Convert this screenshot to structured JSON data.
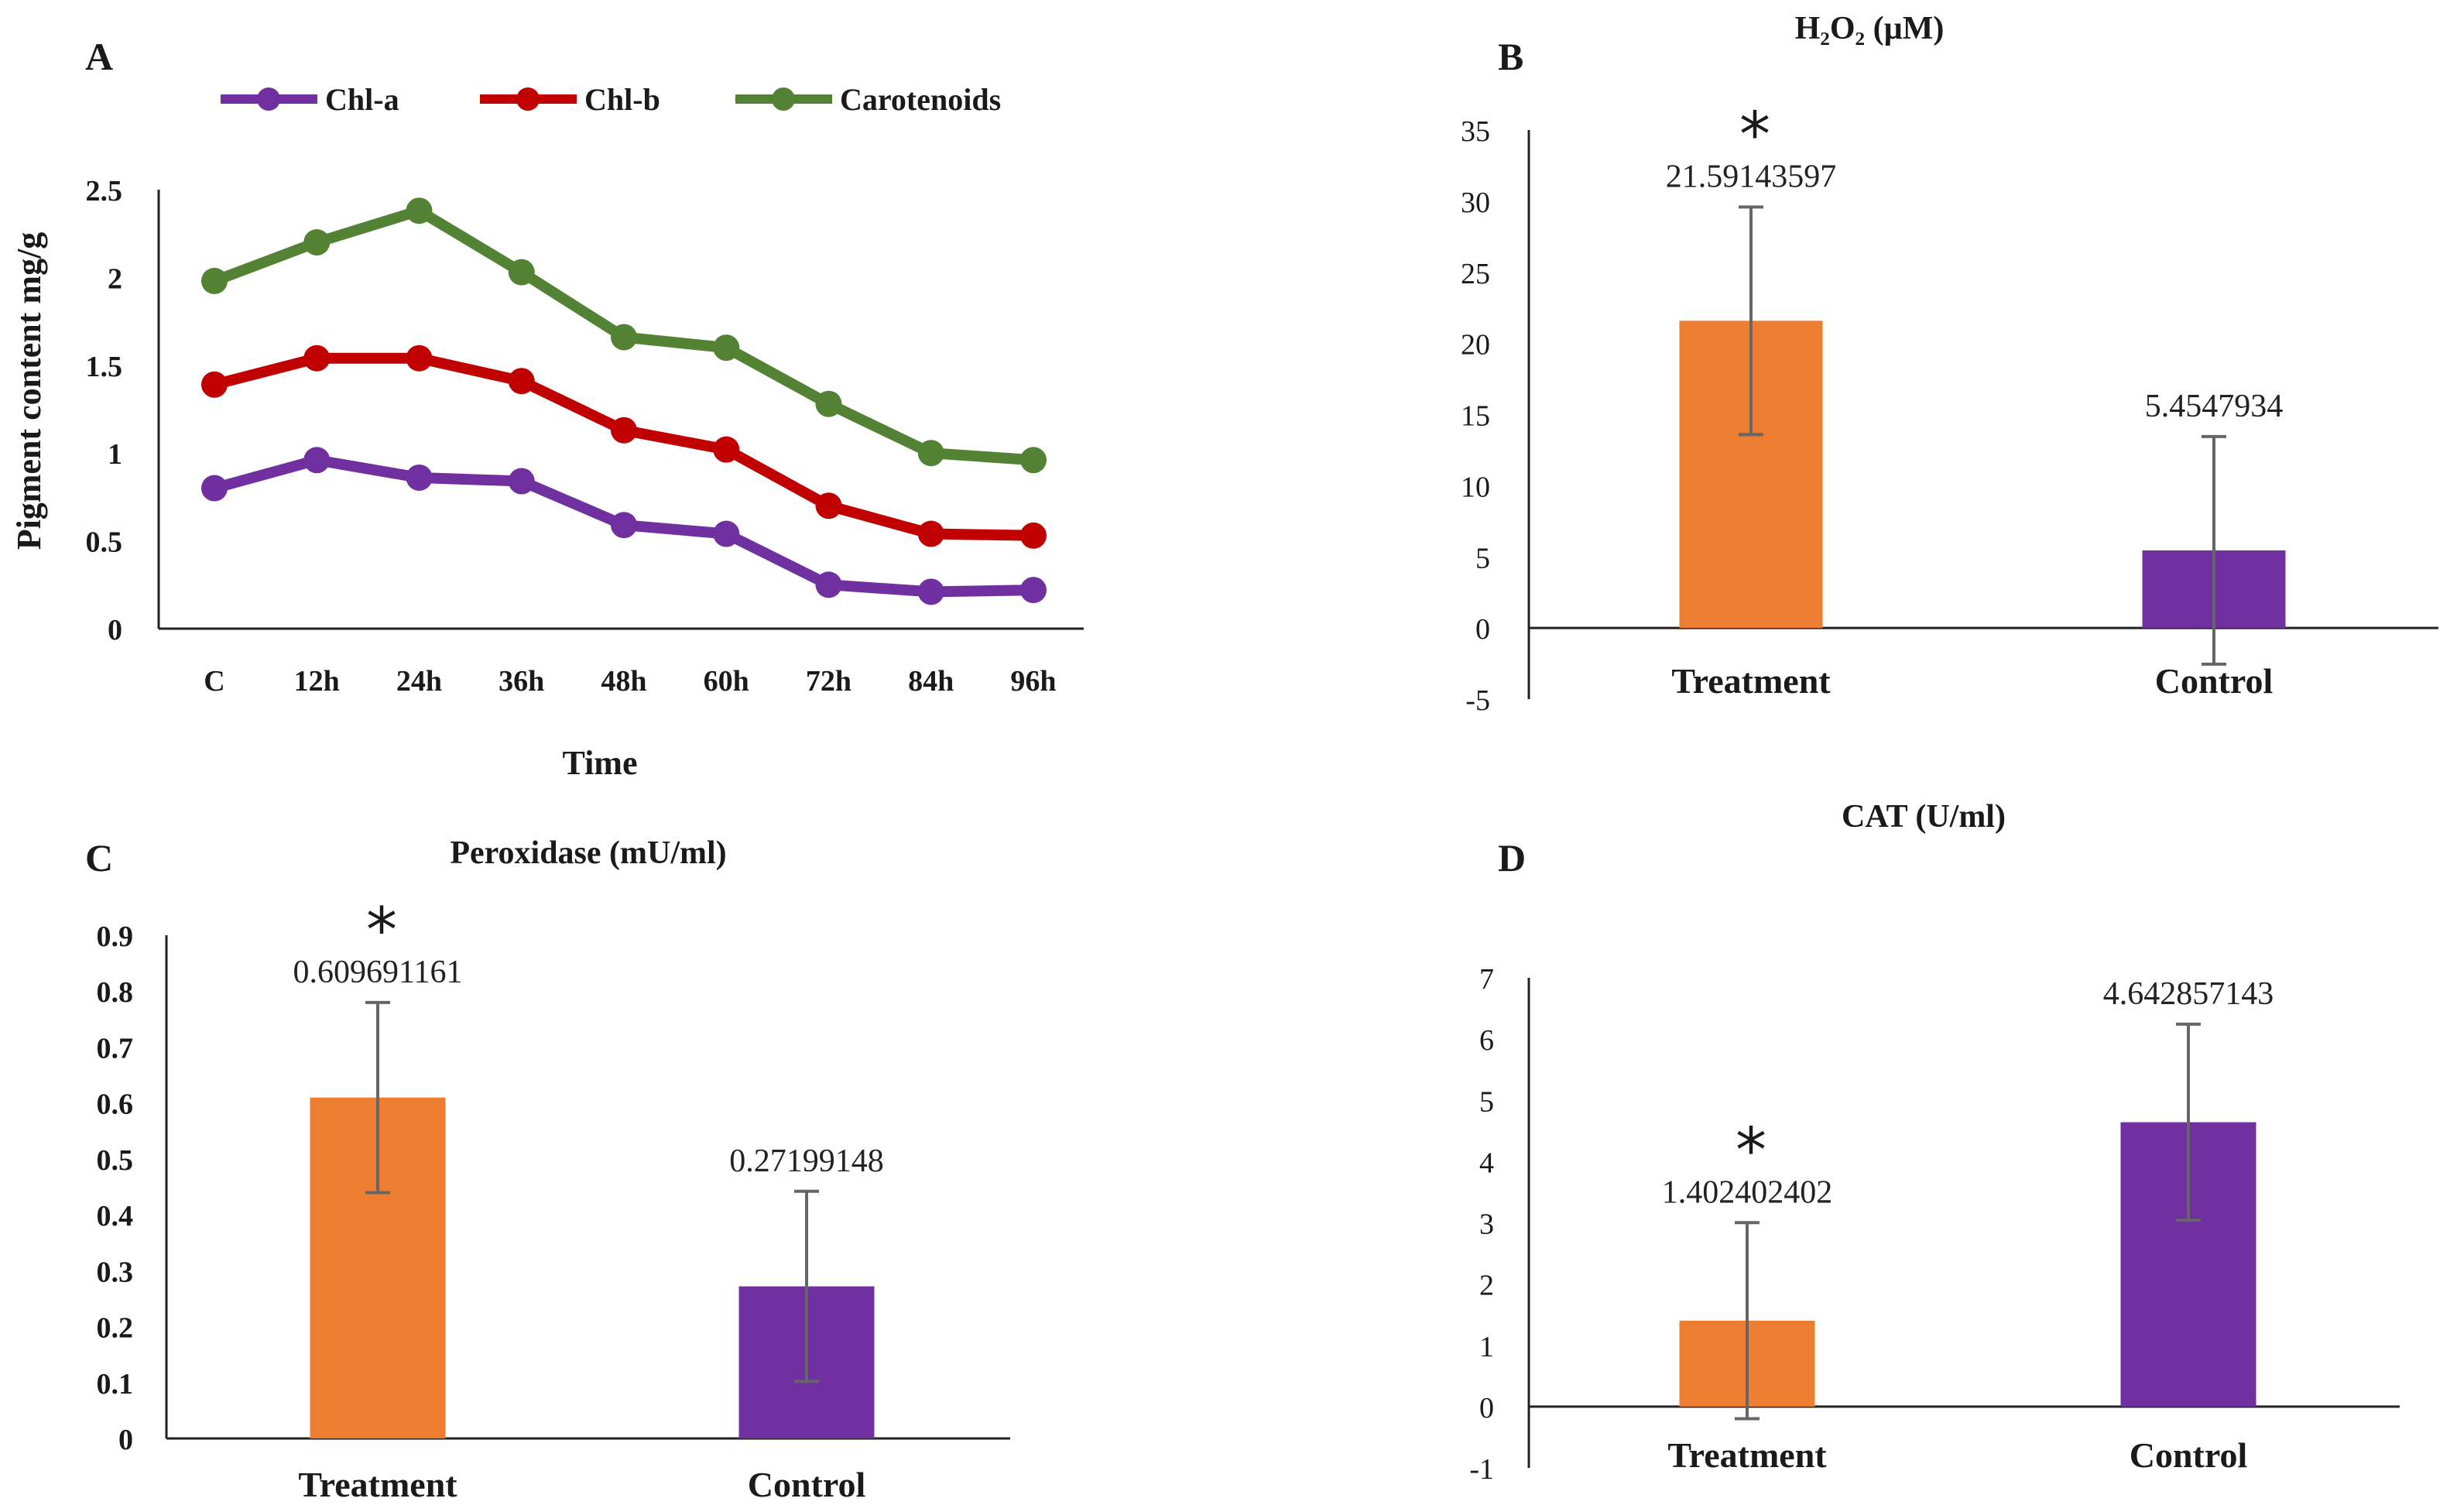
{
  "chart_data": [
    {
      "panel": "A",
      "type": "line",
      "title": "",
      "xlabel": "Time",
      "ylabel": "Pigment content mg/g",
      "categories": [
        "C",
        "12h",
        "24h",
        "36h",
        "48h",
        "60h",
        "72h",
        "84h",
        "96h"
      ],
      "yticks": [
        "0",
        "0.5",
        "1",
        "1.5",
        "2",
        "2.5"
      ],
      "ylim": [
        0,
        2.5
      ],
      "legend_position": "top",
      "series": [
        {
          "name": "Chl-a",
          "color": "#7030a0",
          "values": [
            0.8,
            0.96,
            0.86,
            0.84,
            0.59,
            0.54,
            0.25,
            0.21,
            0.22
          ]
        },
        {
          "name": "Chl-b",
          "color": "#c00000",
          "values": [
            1.39,
            1.54,
            1.54,
            1.41,
            1.13,
            1.02,
            0.7,
            0.54,
            0.53
          ]
        },
        {
          "name": "Carotenoids",
          "color": "#548235",
          "values": [
            1.98,
            2.2,
            2.38,
            2.03,
            1.66,
            1.6,
            1.28,
            1.0,
            0.96
          ]
        }
      ]
    },
    {
      "panel": "B",
      "type": "bar",
      "title": "H₂O₂ (µM)",
      "categories": [
        "Treatment",
        "Control"
      ],
      "values": [
        21.59143597,
        5.4547934
      ],
      "value_labels": [
        "21.59143597",
        "5.4547934"
      ],
      "error": [
        8,
        8
      ],
      "colors": [
        "#ed7d31",
        "#7030a0"
      ],
      "significance": [
        "*",
        ""
      ],
      "yticks": [
        "-5",
        "0",
        "5",
        "10",
        "15",
        "20",
        "25",
        "30",
        "35"
      ],
      "ylim": [
        -5,
        35
      ]
    },
    {
      "panel": "C",
      "type": "bar",
      "title": "Peroxidase (mU/ml)",
      "categories": [
        "Treatment",
        "Control"
      ],
      "values": [
        0.609691161,
        0.27199148
      ],
      "value_labels": [
        "0.609691161",
        "0.27199148"
      ],
      "error": [
        0.17,
        0.17
      ],
      "colors": [
        "#ed7d31",
        "#7030a0"
      ],
      "significance": [
        "*",
        ""
      ],
      "yticks": [
        "0",
        "0.1",
        "0.2",
        "0.3",
        "0.4",
        "0.5",
        "0.6",
        "0.7",
        "0.8",
        "0.9"
      ],
      "ylim": [
        0,
        0.9
      ]
    },
    {
      "panel": "D",
      "type": "bar",
      "title": "CAT (U/ml)",
      "categories": [
        "Treatment",
        "Control"
      ],
      "values": [
        1.402402402,
        4.642857143
      ],
      "value_labels": [
        "1.402402402",
        "4.642857143"
      ],
      "error": [
        1.6,
        1.6
      ],
      "colors": [
        "#ed7d31",
        "#7030a0"
      ],
      "significance": [
        "*",
        ""
      ],
      "yticks": [
        "-1",
        "0",
        "1",
        "2",
        "3",
        "4",
        "5",
        "6",
        "7"
      ],
      "ylim": [
        -1,
        7
      ]
    }
  ]
}
